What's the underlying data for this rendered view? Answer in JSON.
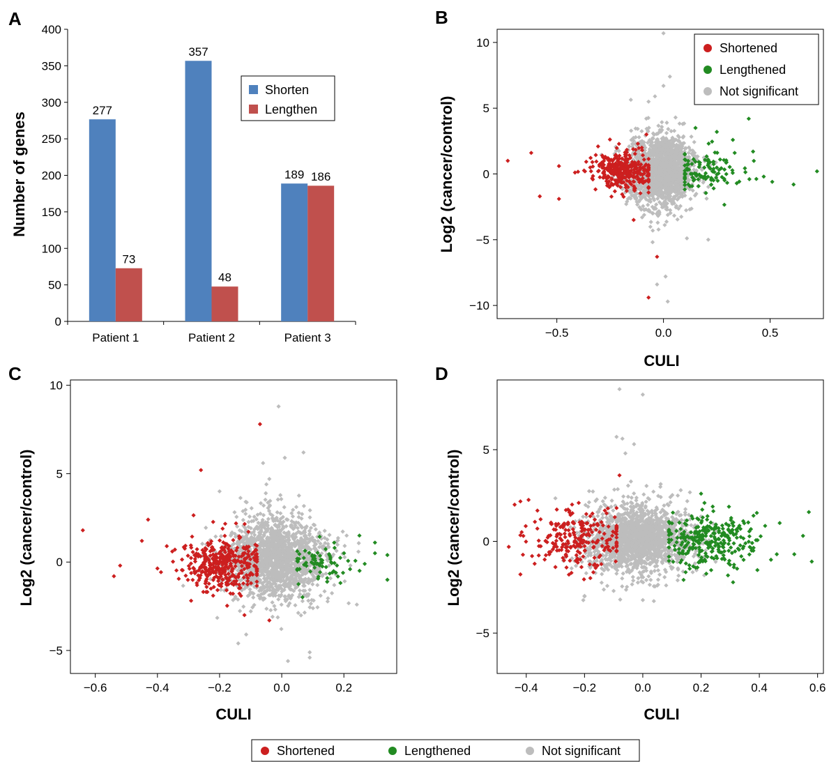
{
  "colors": {
    "shortened": "#cc1f1f",
    "lengthened": "#228b22",
    "not_significant": "#bdbdbd",
    "bar_shorten": "#4f81bd",
    "bar_lengthen": "#c0504d"
  },
  "chart_data": [
    {
      "panel": "A",
      "type": "bar",
      "categories": [
        "Patient 1",
        "Patient 2",
        "Patient 3"
      ],
      "series": [
        {
          "name": "Shorten",
          "values": [
            277,
            357,
            189
          ]
        },
        {
          "name": "Lengthen",
          "values": [
            73,
            48,
            186
          ]
        }
      ],
      "xlabel": "",
      "ylabel": "Number of genes",
      "ylim": [
        0,
        400
      ],
      "yticks": [
        0,
        50,
        100,
        150,
        200,
        250,
        300,
        350,
        400
      ],
      "legend": "upper-right"
    },
    {
      "panel": "B",
      "type": "scatter",
      "xlabel": "CULI",
      "ylabel": "Log2 (cancer/control)",
      "xlim": [
        -0.78,
        0.75
      ],
      "ylim": [
        -11,
        11
      ],
      "xticks": [
        -0.5,
        0.0,
        0.5
      ],
      "yticks": [
        -10,
        -5,
        0,
        5,
        10
      ],
      "legend": "top-right",
      "series": [
        {
          "name": "Shortened",
          "points": [
            [
              -0.73,
              1.0
            ],
            [
              -0.62,
              1.6
            ],
            [
              -0.58,
              -1.7
            ],
            [
              -0.49,
              0.6
            ],
            [
              -0.49,
              -1.9
            ],
            [
              -0.07,
              -9.4
            ],
            [
              -0.03,
              -6.3
            ],
            [
              -0.14,
              -3.5
            ],
            [
              -0.08,
              3.0
            ],
            [
              -0.1,
              1.8
            ],
            [
              -0.12,
              2.3
            ]
          ]
        },
        {
          "name": "Lengthened",
          "points": [
            [
              0.4,
              4.2
            ],
            [
              0.72,
              0.2
            ],
            [
              0.61,
              -0.8
            ],
            [
              0.51,
              -0.6
            ],
            [
              0.42,
              1.7
            ],
            [
              0.47,
              -0.2
            ],
            [
              0.15,
              3.5
            ],
            [
              0.25,
              3.2
            ]
          ]
        },
        {
          "name": "Not significant",
          "points": [
            [
              0.0,
              10.7
            ],
            [
              0.03,
              7.4
            ],
            [
              0.0,
              6.7
            ],
            [
              -0.04,
              5.9
            ],
            [
              0.02,
              -9.7
            ],
            [
              -0.03,
              -8.4
            ],
            [
              0.01,
              -7.8
            ],
            [
              -0.07,
              5.5
            ],
            [
              0.11,
              -4.9
            ],
            [
              -0.1,
              -3.3
            ],
            [
              0.21,
              -5.0
            ]
          ]
        }
      ],
      "cluster_params": {
        "shortened": {
          "count": 340,
          "x_mean": -0.2,
          "x_sd": 0.07,
          "x_range": [
            -0.42,
            -0.07
          ],
          "y_mean": 0.2,
          "y_sd": 0.75
        },
        "lengthened": {
          "count": 110,
          "x_mean": 0.19,
          "x_sd": 0.08,
          "x_range": [
            0.1,
            0.5
          ],
          "y_mean": 0.2,
          "y_sd": 0.8
        },
        "not_significant": {
          "count": 1800,
          "x_mean": -0.01,
          "x_sd": 0.08,
          "x_range": [
            -0.3,
            0.3
          ],
          "y_mean": 0.3,
          "y_sd": 1.4
        }
      }
    },
    {
      "panel": "C",
      "type": "scatter",
      "xlabel": "CULI",
      "ylabel": "Log2 (cancer/control)",
      "xlim": [
        -0.68,
        0.37
      ],
      "ylim": [
        -6.3,
        10.3
      ],
      "xticks": [
        -0.6,
        -0.4,
        -0.2,
        0.0,
        0.2
      ],
      "yticks": [
        -5,
        0,
        5,
        10
      ],
      "series": [
        {
          "name": "Shortened",
          "points": [
            [
              -0.64,
              1.8
            ],
            [
              -0.54,
              -0.8
            ],
            [
              -0.52,
              -0.2
            ],
            [
              -0.43,
              2.4
            ],
            [
              -0.26,
              5.2
            ],
            [
              -0.07,
              7.8
            ],
            [
              -0.04,
              -3.3
            ],
            [
              -0.12,
              -3.0
            ],
            [
              -0.45,
              1.2
            ],
            [
              -0.37,
              0.9
            ]
          ]
        },
        {
          "name": "Lengthened",
          "points": [
            [
              0.34,
              0.4
            ],
            [
              0.34,
              -1.0
            ],
            [
              0.3,
              1.1
            ],
            [
              0.25,
              1.5
            ],
            [
              0.3,
              0.5
            ],
            [
              0.22,
              -0.4
            ],
            [
              0.17,
              0.8
            ]
          ]
        },
        {
          "name": "Not significant",
          "points": [
            [
              -0.01,
              8.8
            ],
            [
              0.07,
              6.2
            ],
            [
              -0.06,
              5.6
            ],
            [
              0.01,
              5.9
            ],
            [
              0.02,
              -5.6
            ],
            [
              0.09,
              -5.4
            ],
            [
              0.09,
              -5.1
            ],
            [
              -0.14,
              -4.6
            ],
            [
              -0.2,
              4.0
            ],
            [
              -0.04,
              4.7
            ]
          ]
        }
      ],
      "cluster_params": {
        "shortened": {
          "count": 380,
          "x_mean": -0.19,
          "x_sd": 0.07,
          "x_range": [
            -0.4,
            -0.08
          ],
          "y_mean": -0.1,
          "y_sd": 0.85
        },
        "lengthened": {
          "count": 70,
          "x_mean": 0.12,
          "x_sd": 0.05,
          "x_range": [
            0.05,
            0.3
          ],
          "y_mean": -0.2,
          "y_sd": 0.6
        },
        "not_significant": {
          "count": 1700,
          "x_mean": -0.02,
          "x_sd": 0.08,
          "x_range": [
            -0.35,
            0.25
          ],
          "y_mean": 0.2,
          "y_sd": 1.3
        }
      }
    },
    {
      "panel": "D",
      "type": "scatter",
      "xlabel": "CULI",
      "ylabel": "Log2 (cancer/control)",
      "xlim": [
        -0.5,
        0.62
      ],
      "ylim": [
        -7.2,
        8.8
      ],
      "xticks": [
        -0.4,
        -0.2,
        0.0,
        0.2,
        0.4,
        0.6
      ],
      "yticks": [
        -5,
        0,
        5
      ],
      "series": [
        {
          "name": "Shortened",
          "points": [
            [
              -0.44,
              2.0
            ],
            [
              -0.46,
              -0.3
            ],
            [
              -0.42,
              -1.8
            ],
            [
              -0.08,
              3.6
            ],
            [
              -0.41,
              0.3
            ],
            [
              -0.38,
              -0.8
            ],
            [
              -0.22,
              2.1
            ],
            [
              -0.12,
              1.8
            ],
            [
              -0.3,
              -1.4
            ],
            [
              -0.18,
              -2.0
            ]
          ]
        },
        {
          "name": "Lengthened",
          "points": [
            [
              0.57,
              1.6
            ],
            [
              0.58,
              -1.1
            ],
            [
              0.55,
              0.3
            ],
            [
              0.52,
              -0.7
            ],
            [
              0.47,
              1.0
            ],
            [
              0.46,
              -0.7
            ],
            [
              0.44,
              -1.0
            ],
            [
              0.38,
              1.4
            ],
            [
              0.24,
              1.9
            ],
            [
              0.14,
              -2.1
            ],
            [
              0.2,
              2.6
            ]
          ]
        },
        {
          "name": "Not significant",
          "points": [
            [
              -0.08,
              8.3
            ],
            [
              0.0,
              8.0
            ],
            [
              -0.09,
              5.7
            ],
            [
              -0.07,
              5.6
            ],
            [
              -0.03,
              5.3
            ],
            [
              -0.06,
              4.8
            ],
            [
              -0.2,
              -3.0
            ],
            [
              0.0,
              -3.2
            ],
            [
              -0.1,
              -2.7
            ],
            [
              0.08,
              -2.4
            ],
            [
              0.12,
              2.5
            ]
          ]
        }
      ],
      "cluster_params": {
        "shortened": {
          "count": 230,
          "x_mean": -0.22,
          "x_sd": 0.08,
          "x_range": [
            -0.42,
            -0.09
          ],
          "y_mean": 0.1,
          "y_sd": 0.85
        },
        "lengthened": {
          "count": 290,
          "x_mean": 0.23,
          "x_sd": 0.08,
          "x_range": [
            0.09,
            0.42
          ],
          "y_mean": 0.1,
          "y_sd": 0.8
        },
        "not_significant": {
          "count": 1800,
          "x_mean": -0.02,
          "x_sd": 0.09,
          "x_range": [
            -0.3,
            0.25
          ],
          "y_mean": 0.1,
          "y_sd": 1.0
        }
      }
    }
  ],
  "panel_labels": [
    "A",
    "B",
    "C",
    "D"
  ],
  "legend_b": [
    "Shortened",
    "Lengthened",
    "Not significant"
  ],
  "legend_bottom": [
    "Shortened",
    "Lengthened",
    "Not significant"
  ]
}
